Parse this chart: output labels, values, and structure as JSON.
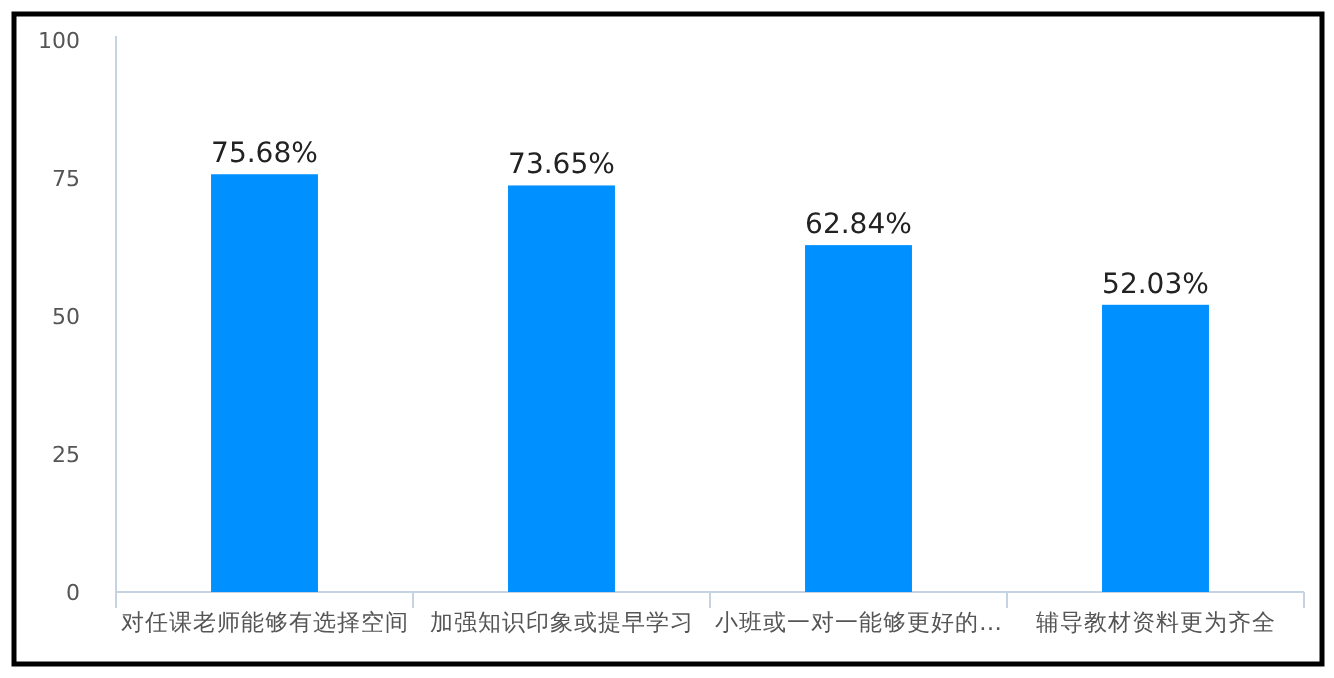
{
  "chart_data": {
    "type": "bar",
    "categories": [
      "对任课老师能够有选择空间",
      "加强知识印象或提早学习",
      "小班或一对一能够更好的…",
      "辅导教材资料更为齐全"
    ],
    "values": [
      75.68,
      73.65,
      62.84,
      52.03
    ],
    "value_labels": [
      "75.68%",
      "73.65%",
      "62.84%",
      "52.03%"
    ],
    "color": "#0090ff",
    "ylim": [
      0,
      100
    ],
    "yticks": [
      0,
      25,
      50,
      75,
      100
    ]
  }
}
